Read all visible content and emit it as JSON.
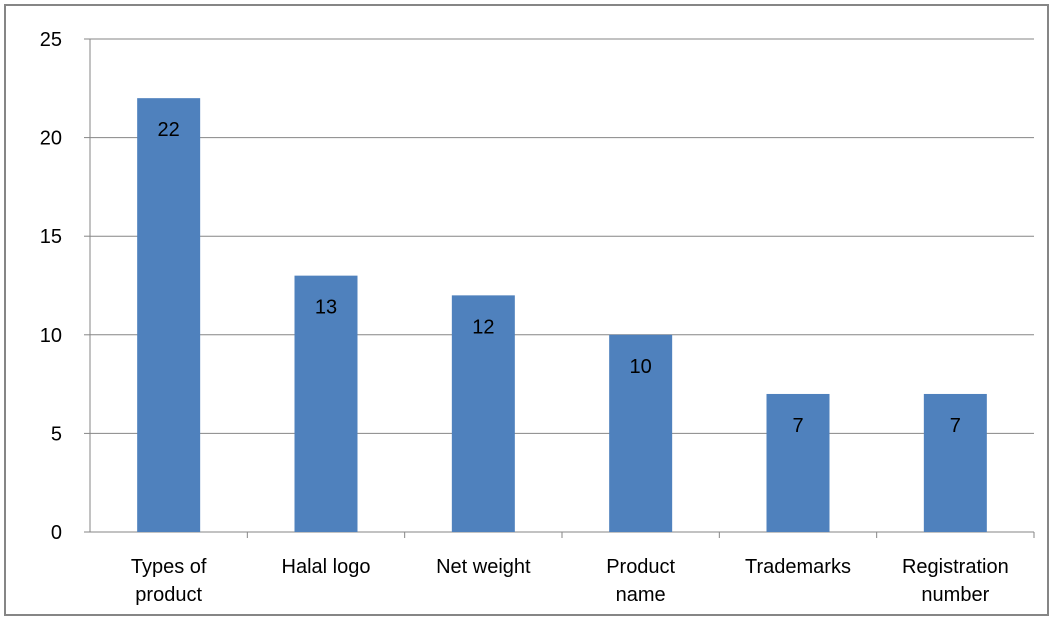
{
  "chart_data": {
    "type": "bar",
    "categories": [
      [
        "Types of",
        "product"
      ],
      [
        "Halal logo"
      ],
      [
        "Net weight"
      ],
      [
        "Product",
        "name"
      ],
      [
        "Trademarks"
      ],
      [
        "Registration",
        "number"
      ]
    ],
    "values": [
      22,
      13,
      12,
      10,
      7,
      7
    ],
    "data_labels": [
      "22",
      "13",
      "12",
      "10",
      "7",
      "7"
    ],
    "y_ticks": [
      "0",
      "5",
      "10",
      "15",
      "20",
      "25"
    ],
    "ylim": [
      0,
      25
    ],
    "grid": true,
    "legend": "none",
    "colors": {
      "bar": "#4f81bd",
      "grid": "#868686",
      "axis": "#868686",
      "frame": "#868686"
    }
  }
}
